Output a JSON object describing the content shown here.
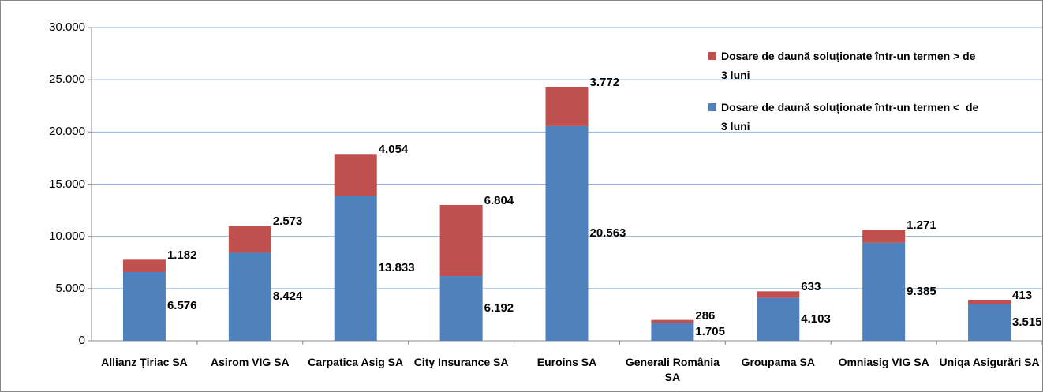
{
  "chart_data": {
    "type": "stacked_bar",
    "categories": [
      "Allianz Țiriac SA",
      "Asirom VIG SA",
      "Carpatica Asig SA",
      "City Insurance SA",
      "Euroins SA",
      "Generali România SA",
      "Groupama SA",
      "Omniasig VIG SA",
      "Uniqa Asigurări SA"
    ],
    "series": [
      {
        "name": "Dosare de daună soluționate într-un termen <  de 3 luni",
        "color": "#4f81bd",
        "values": [
          6576,
          8424,
          13833,
          6192,
          20563,
          1705,
          4103,
          9385,
          3515
        ],
        "value_labels": [
          "6.576",
          "8.424",
          "13.833",
          "6.192",
          "20.563",
          "1.705",
          "4.103",
          "9.385",
          "3.515"
        ]
      },
      {
        "name": "Dosare de daună soluționate într-un termen > de 3 luni",
        "color": "#c0504d",
        "values": [
          1182,
          2573,
          4054,
          6804,
          3772,
          286,
          633,
          1271,
          413
        ],
        "value_labels": [
          "1.182",
          "2.573",
          "4.054",
          "6.804",
          "3.772",
          "286",
          "633",
          "1.271",
          "413"
        ]
      }
    ],
    "ylim": [
      0,
      30000
    ],
    "yticks": [
      0,
      {
        "value": 5000,
        "label": "5.000"
      },
      {
        "value": 10000,
        "label": "10.000"
      },
      {
        "value": 15000,
        "label": "15.000"
      },
      {
        "value": 20000,
        "label": "20.000"
      },
      {
        "value": 25000,
        "label": "25.000"
      },
      {
        "value": 30000,
        "label": "30.000"
      }
    ],
    "grid": true,
    "legend": "top-right"
  }
}
